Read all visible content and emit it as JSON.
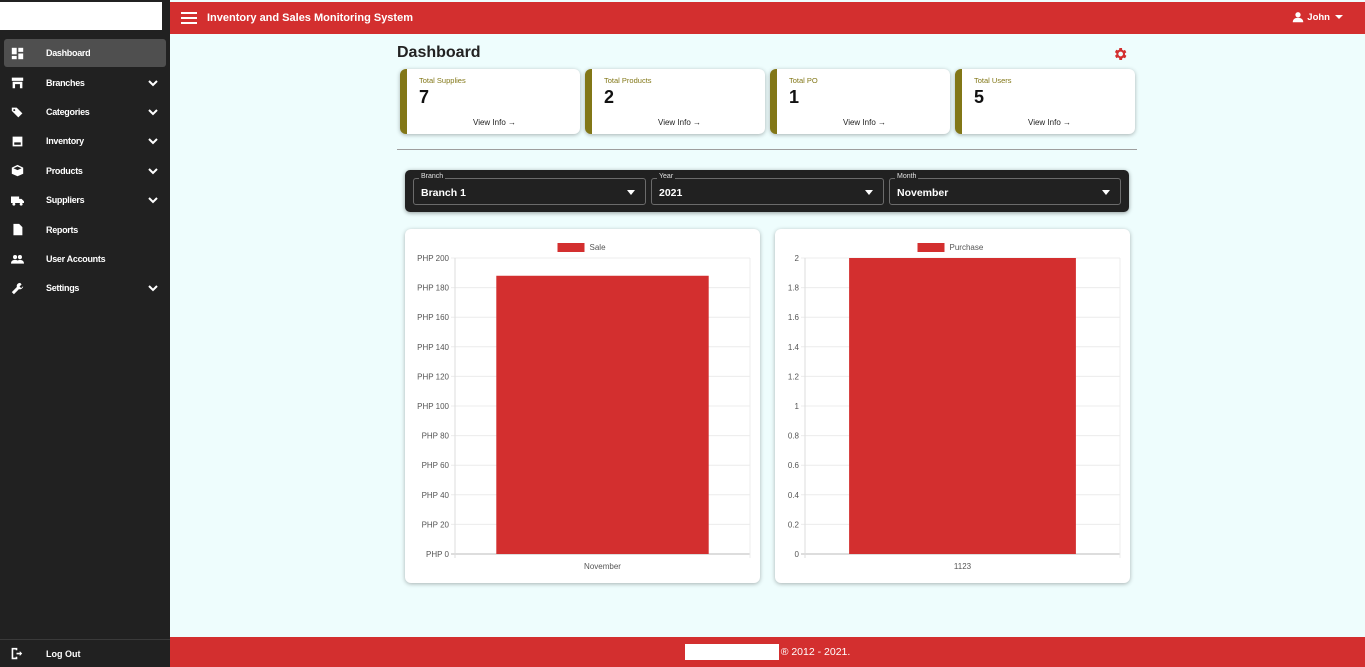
{
  "header": {
    "title": "Inventory and Sales Monitoring System",
    "user": "John"
  },
  "sidebar": {
    "items": [
      {
        "label": "Dashboard",
        "icon": "dashboard-icon",
        "expandable": false,
        "active": true
      },
      {
        "label": "Branches",
        "icon": "store-icon",
        "expandable": true
      },
      {
        "label": "Categories",
        "icon": "tags-icon",
        "expandable": true
      },
      {
        "label": "Inventory",
        "icon": "inventory-icon",
        "expandable": true
      },
      {
        "label": "Products",
        "icon": "box-icon",
        "expandable": true
      },
      {
        "label": "Suppliers",
        "icon": "truck-icon",
        "expandable": true
      },
      {
        "label": "Reports",
        "icon": "file-icon",
        "expandable": false
      },
      {
        "label": "User Accounts",
        "icon": "users-icon",
        "expandable": false
      },
      {
        "label": "Settings",
        "icon": "wrench-icon",
        "expandable": true
      }
    ],
    "logout": "Log Out"
  },
  "main": {
    "title": "Dashboard",
    "cards": [
      {
        "label": "Total Supplies",
        "value": "7",
        "link": "View Info"
      },
      {
        "label": "Total Products",
        "value": "2",
        "link": "View Info"
      },
      {
        "label": "Total PO",
        "value": "1",
        "link": "View Info"
      },
      {
        "label": "Total Users",
        "value": "5",
        "link": "View Info"
      }
    ],
    "filters": {
      "branch": {
        "label": "Branch",
        "value": "Branch 1"
      },
      "year": {
        "label": "Year",
        "value": "2021"
      },
      "month": {
        "label": "Month",
        "value": "November"
      }
    }
  },
  "chart_data": [
    {
      "type": "bar",
      "legend": "top",
      "categories": [
        "November"
      ],
      "series": [
        {
          "name": "Sale",
          "values": [
            188
          ],
          "color": "#d32f2f"
        }
      ],
      "ylim": [
        0,
        200
      ],
      "yticks": [
        "PHP 200",
        "PHP 180",
        "PHP 160",
        "PHP 140",
        "PHP 120",
        "PHP 100",
        "PHP 80",
        "PHP 60",
        "PHP 40",
        "PHP 20",
        "PHP 0"
      ],
      "grid": true
    },
    {
      "type": "bar",
      "legend": "top",
      "categories": [
        "1123"
      ],
      "series": [
        {
          "name": "Purchase",
          "values": [
            2
          ],
          "color": "#d32f2f"
        }
      ],
      "ylim": [
        0,
        2
      ],
      "yticks": [
        "2",
        "1.8",
        "1.6",
        "1.4",
        "1.2",
        "1",
        "0.8",
        "0.6",
        "0.4",
        "0.2",
        "0"
      ],
      "grid": true
    }
  ],
  "footer": {
    "text": "® 2012 - 2021."
  }
}
